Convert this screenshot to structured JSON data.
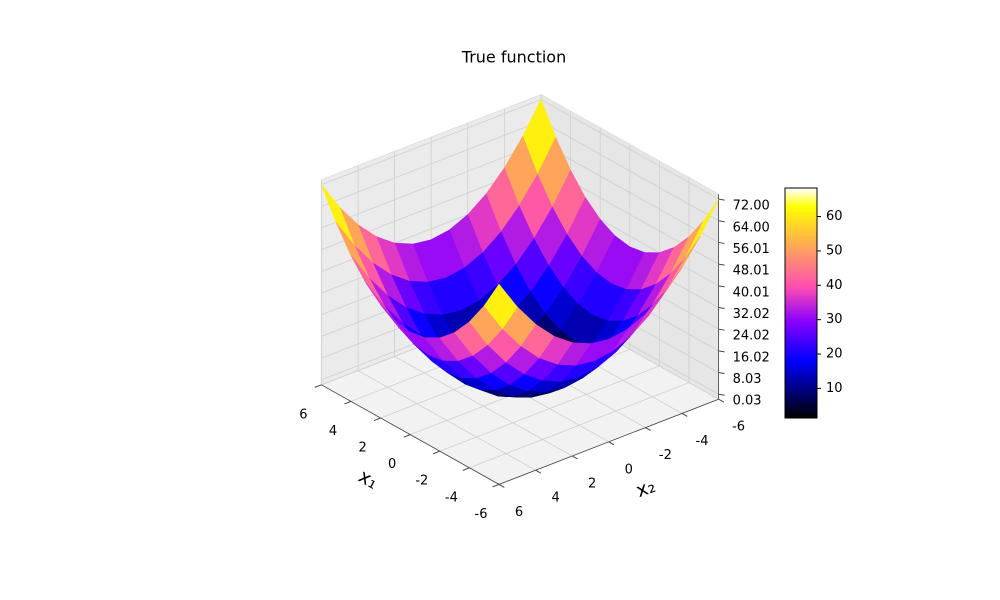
{
  "chart_data": {
    "type": "surface",
    "title": "True function",
    "x_label": "x₁",
    "y_label": "x₂",
    "x": [
      -6,
      -5,
      -4,
      -3,
      -2,
      -1,
      0,
      1,
      2,
      3,
      4,
      5,
      6
    ],
    "y": [
      -6,
      -5,
      -4,
      -3,
      -2,
      -1,
      0,
      1,
      2,
      3,
      4,
      5,
      6
    ],
    "z": [
      [
        72,
        61,
        52,
        45,
        40,
        37,
        36,
        37,
        40,
        45,
        52,
        61,
        72
      ],
      [
        61,
        50,
        41,
        34,
        29,
        26,
        25,
        26,
        29,
        34,
        41,
        50,
        61
      ],
      [
        52,
        41,
        32,
        25,
        20,
        17,
        16,
        17,
        20,
        25,
        32,
        41,
        52
      ],
      [
        45,
        34,
        25,
        18,
        13,
        10,
        9,
        10,
        13,
        18,
        25,
        34,
        45
      ],
      [
        40,
        29,
        20,
        13,
        8,
        5,
        4,
        5,
        8,
        13,
        20,
        29,
        40
      ],
      [
        37,
        26,
        17,
        10,
        5,
        2,
        1,
        2,
        5,
        10,
        17,
        26,
        37
      ],
      [
        36,
        25,
        16,
        9,
        4,
        1,
        0,
        1,
        4,
        9,
        16,
        25,
        36
      ],
      [
        37,
        26,
        17,
        10,
        5,
        2,
        1,
        2,
        5,
        10,
        17,
        26,
        37
      ],
      [
        40,
        29,
        20,
        13,
        8,
        5,
        4,
        5,
        8,
        13,
        20,
        29,
        40
      ],
      [
        45,
        34,
        25,
        18,
        13,
        10,
        9,
        10,
        13,
        18,
        25,
        34,
        45
      ],
      [
        52,
        41,
        32,
        25,
        20,
        17,
        16,
        17,
        20,
        25,
        32,
        41,
        52
      ],
      [
        61,
        50,
        41,
        34,
        29,
        26,
        25,
        26,
        29,
        34,
        41,
        50,
        61
      ],
      [
        72,
        61,
        52,
        45,
        40,
        37,
        36,
        37,
        40,
        45,
        52,
        61,
        72
      ]
    ],
    "xlim": [
      -6,
      6
    ],
    "ylim": [
      -6,
      6
    ],
    "zlim": [
      -1.8,
      73.8
    ],
    "xticks": [
      -6,
      -4,
      -2,
      0,
      2,
      4,
      6
    ],
    "yticks": [
      -6,
      -4,
      -2,
      0,
      2,
      4,
      6
    ],
    "zticks": [
      0.03,
      8.03,
      16.02,
      24.02,
      32.02,
      40.01,
      48.01,
      56.01,
      {
        "value": 64,
        "label": "64.00"
      },
      {
        "value": 72,
        "label": "72.00"
      }
    ],
    "colormap": "gnuplot2",
    "colorbar": {
      "lim": [
        1.4,
        68.3
      ],
      "ticks": [
        10,
        20,
        30,
        40,
        50,
        60
      ]
    },
    "grid": true
  }
}
